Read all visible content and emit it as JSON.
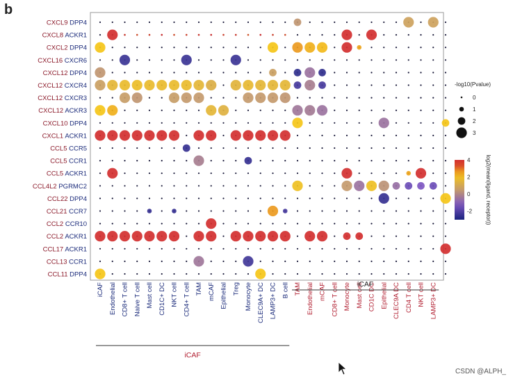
{
  "panel_label": "b",
  "watermark": "CSDN @ALPH_",
  "colors": {
    "low": "#1a237e",
    "mid": "#7e57c2",
    "zero": "#c49a6c",
    "high": "#f5c518",
    "top": "#d32f2f",
    "frame": "#999999",
    "left_group": "#1a2a7a",
    "right_group": "#b01c2e"
  },
  "chart_data": {
    "type": "dotplot",
    "y_categories": [
      "CXCL9 DPP4",
      "CXCL8 ACKR1",
      "CXCL2 DPP4",
      "CXCL16 CXCR6",
      "CXCL12 DPP4",
      "CXCL12 CXCR4",
      "CXCL12 CXCR3",
      "CXCL12 ACKR3",
      "CXCL10 DPP4",
      "CXCL1 ACKR1",
      "CCL5 CCR5",
      "CCL5 CCR1",
      "CCL5 ACKR1",
      "CCL4L2 PGRMC2",
      "CCL22 DPP4",
      "CCL21 CCR7",
      "CCL2 CCR10",
      "CCL2 ACKR1",
      "CCL17 ACKR1",
      "CCL13 CCR1",
      "CCL11 DPP4"
    ],
    "x_categories": [
      "iCAF",
      "Endothelial",
      "CD8+ T cell",
      "Naive T cell",
      "Mast cell",
      "CD1C+ DC",
      "NKT cell",
      "CD4+ T cell",
      "TAM",
      "mCAF",
      "Epithelial",
      "Treg",
      "Monocyte",
      "CLEC9A+ DC",
      "LAMP3+ DC",
      "B cell",
      "TAM",
      "Endothelial",
      "mCAF",
      "CD8+ T cell",
      "Monocyte",
      "Mast cell",
      "CD1C DC",
      "Epithelial",
      "CLEC9A DC",
      "CD4 T cell",
      "NKT cell",
      "LAMP3+ DC"
    ],
    "x_groups": [
      {
        "label": "iCAF",
        "start": 0,
        "end": 15,
        "position": "bottom"
      },
      {
        "label": "iCAF",
        "start": 16,
        "end": 27,
        "position": "top"
      }
    ],
    "size_legend": {
      "title": "-log10(Pvalue)",
      "values": [
        0,
        1,
        2,
        3
      ]
    },
    "color_legend": {
      "title": "log2(mean(ligand, receptor))",
      "ticks": [
        4,
        2,
        0,
        -2
      ],
      "range": [
        -3,
        4
      ]
    },
    "points": [
      [
        0,
        28,
        4,
        1.0
      ],
      [
        0,
        16,
        2,
        0.4
      ],
      [
        0,
        25,
        3,
        0.8
      ],
      [
        0,
        27,
        3,
        0.8
      ],
      [
        1,
        1,
        3,
        4.0
      ],
      [
        1,
        2,
        0,
        3.5
      ],
      [
        1,
        3,
        0,
        3.3
      ],
      [
        1,
        4,
        0,
        3.4
      ],
      [
        1,
        5,
        0,
        3.6
      ],
      [
        1,
        6,
        0,
        3.3
      ],
      [
        1,
        7,
        0,
        3.4
      ],
      [
        1,
        8,
        0,
        3.5
      ],
      [
        1,
        9,
        0,
        3.8
      ],
      [
        1,
        10,
        0,
        3.4
      ],
      [
        1,
        11,
        0,
        3.5
      ],
      [
        1,
        12,
        0,
        3.2
      ],
      [
        1,
        13,
        0,
        3.6
      ],
      [
        1,
        14,
        0,
        3.4
      ],
      [
        1,
        15,
        0,
        3.3
      ],
      [
        1,
        20,
        3,
        4.0
      ],
      [
        1,
        22,
        3,
        4.0
      ],
      [
        2,
        0,
        3,
        2.2
      ],
      [
        2,
        14,
        3,
        2.2
      ],
      [
        2,
        16,
        3,
        2.6
      ],
      [
        2,
        17,
        3,
        2.4
      ],
      [
        2,
        18,
        3,
        2.3
      ],
      [
        2,
        20,
        3,
        4.0
      ],
      [
        2,
        21,
        1,
        2.5
      ],
      [
        3,
        2,
        3,
        -2.4
      ],
      [
        3,
        7,
        3,
        -2.4
      ],
      [
        3,
        11,
        3,
        -2.4
      ],
      [
        4,
        0,
        3,
        0.4
      ],
      [
        4,
        14,
        2,
        0.7
      ],
      [
        4,
        16,
        2,
        -2.6
      ],
      [
        4,
        17,
        3,
        -0.5
      ],
      [
        4,
        18,
        2,
        -2.6
      ],
      [
        5,
        0,
        3,
        0.7
      ],
      [
        5,
        1,
        3,
        1.6
      ],
      [
        5,
        2,
        3,
        1.8
      ],
      [
        5,
        3,
        3,
        1.9
      ],
      [
        5,
        4,
        3,
        1.8
      ],
      [
        5,
        5,
        3,
        1.8
      ],
      [
        5,
        6,
        3,
        1.8
      ],
      [
        5,
        7,
        3,
        1.8
      ],
      [
        5,
        8,
        3,
        1.6
      ],
      [
        5,
        9,
        3,
        1.3
      ],
      [
        5,
        11,
        3,
        1.5
      ],
      [
        5,
        12,
        3,
        1.7
      ],
      [
        5,
        13,
        3,
        1.6
      ],
      [
        5,
        14,
        3,
        1.6
      ],
      [
        5,
        15,
        3,
        1.6
      ],
      [
        5,
        16,
        2,
        -2.2
      ],
      [
        5,
        17,
        3,
        -0.2
      ],
      [
        5,
        18,
        2,
        -2.2
      ],
      [
        6,
        2,
        3,
        0.6
      ],
      [
        6,
        3,
        3,
        0.4
      ],
      [
        6,
        6,
        3,
        0.6
      ],
      [
        6,
        7,
        3,
        0.5
      ],
      [
        6,
        8,
        3,
        0.5
      ],
      [
        6,
        12,
        3,
        0.5
      ],
      [
        6,
        13,
        3,
        0.5
      ],
      [
        6,
        14,
        3,
        0.5
      ],
      [
        6,
        15,
        3,
        0.4
      ],
      [
        7,
        0,
        3,
        2.2
      ],
      [
        7,
        1,
        3,
        2.4
      ],
      [
        7,
        9,
        3,
        1.6
      ],
      [
        7,
        10,
        3,
        1.4
      ],
      [
        7,
        16,
        3,
        -0.4
      ],
      [
        7,
        17,
        3,
        -0.3
      ],
      [
        7,
        18,
        3,
        -0.5
      ],
      [
        8,
        16,
        3,
        2.2
      ],
      [
        8,
        23,
        3,
        -0.5
      ],
      [
        8,
        28,
        2,
        2.2
      ],
      [
        9,
        0,
        3,
        4.0
      ],
      [
        9,
        1,
        3,
        4.0
      ],
      [
        9,
        2,
        3,
        4.0
      ],
      [
        9,
        3,
        3,
        4.0
      ],
      [
        9,
        4,
        3,
        4.0
      ],
      [
        9,
        5,
        3,
        4.0
      ],
      [
        9,
        6,
        3,
        4.0
      ],
      [
        9,
        8,
        3,
        4.0
      ],
      [
        9,
        9,
        3,
        4.0
      ],
      [
        9,
        11,
        3,
        4.0
      ],
      [
        9,
        12,
        3,
        4.0
      ],
      [
        9,
        13,
        3,
        4.0
      ],
      [
        9,
        14,
        3,
        4.0
      ],
      [
        9,
        15,
        3,
        4.0
      ],
      [
        10,
        7,
        2,
        -2.5
      ],
      [
        11,
        8,
        3,
        -0.2
      ],
      [
        11,
        12,
        2,
        -2.5
      ],
      [
        12,
        1,
        3,
        4.0
      ],
      [
        12,
        20,
        3,
        4.0
      ],
      [
        12,
        26,
        3,
        4.0
      ],
      [
        12,
        25,
        1,
        2.5
      ],
      [
        13,
        16,
        3,
        2.0
      ],
      [
        13,
        20,
        3,
        0.5
      ],
      [
        13,
        21,
        3,
        -0.5
      ],
      [
        13,
        22,
        3,
        2.0
      ],
      [
        13,
        23,
        3,
        0.3
      ],
      [
        13,
        24,
        2,
        -0.6
      ],
      [
        13,
        25,
        2,
        -1.5
      ],
      [
        13,
        26,
        2,
        -1.2
      ],
      [
        13,
        27,
        2,
        -1.5
      ],
      [
        14,
        23,
        3,
        -2.5
      ],
      [
        14,
        28,
        3,
        2.2
      ],
      [
        15,
        4,
        1,
        -2.5
      ],
      [
        15,
        6,
        1,
        -2.5
      ],
      [
        15,
        14,
        3,
        2.6
      ],
      [
        15,
        15,
        1,
        -2.2
      ],
      [
        16,
        9,
        3,
        4.0
      ],
      [
        17,
        0,
        3,
        4.0
      ],
      [
        17,
        1,
        3,
        4.0
      ],
      [
        17,
        2,
        3,
        4.0
      ],
      [
        17,
        3,
        3,
        4.0
      ],
      [
        17,
        4,
        3,
        4.0
      ],
      [
        17,
        5,
        3,
        4.0
      ],
      [
        17,
        6,
        3,
        4.0
      ],
      [
        17,
        8,
        3,
        4.0
      ],
      [
        17,
        9,
        3,
        4.0
      ],
      [
        17,
        11,
        3,
        4.0
      ],
      [
        17,
        12,
        3,
        4.0
      ],
      [
        17,
        13,
        3,
        4.0
      ],
      [
        17,
        14,
        3,
        4.0
      ],
      [
        17,
        15,
        3,
        4.0
      ],
      [
        17,
        17,
        3,
        4.0
      ],
      [
        17,
        18,
        3,
        4.0
      ],
      [
        17,
        20,
        2,
        4.0
      ],
      [
        17,
        21,
        2,
        4.0
      ],
      [
        18,
        28,
        3,
        4.0
      ],
      [
        19,
        8,
        3,
        -0.4
      ],
      [
        19,
        12,
        3,
        -2.3
      ],
      [
        20,
        0,
        3,
        2.2
      ],
      [
        20,
        13,
        3,
        2.2
      ]
    ]
  }
}
